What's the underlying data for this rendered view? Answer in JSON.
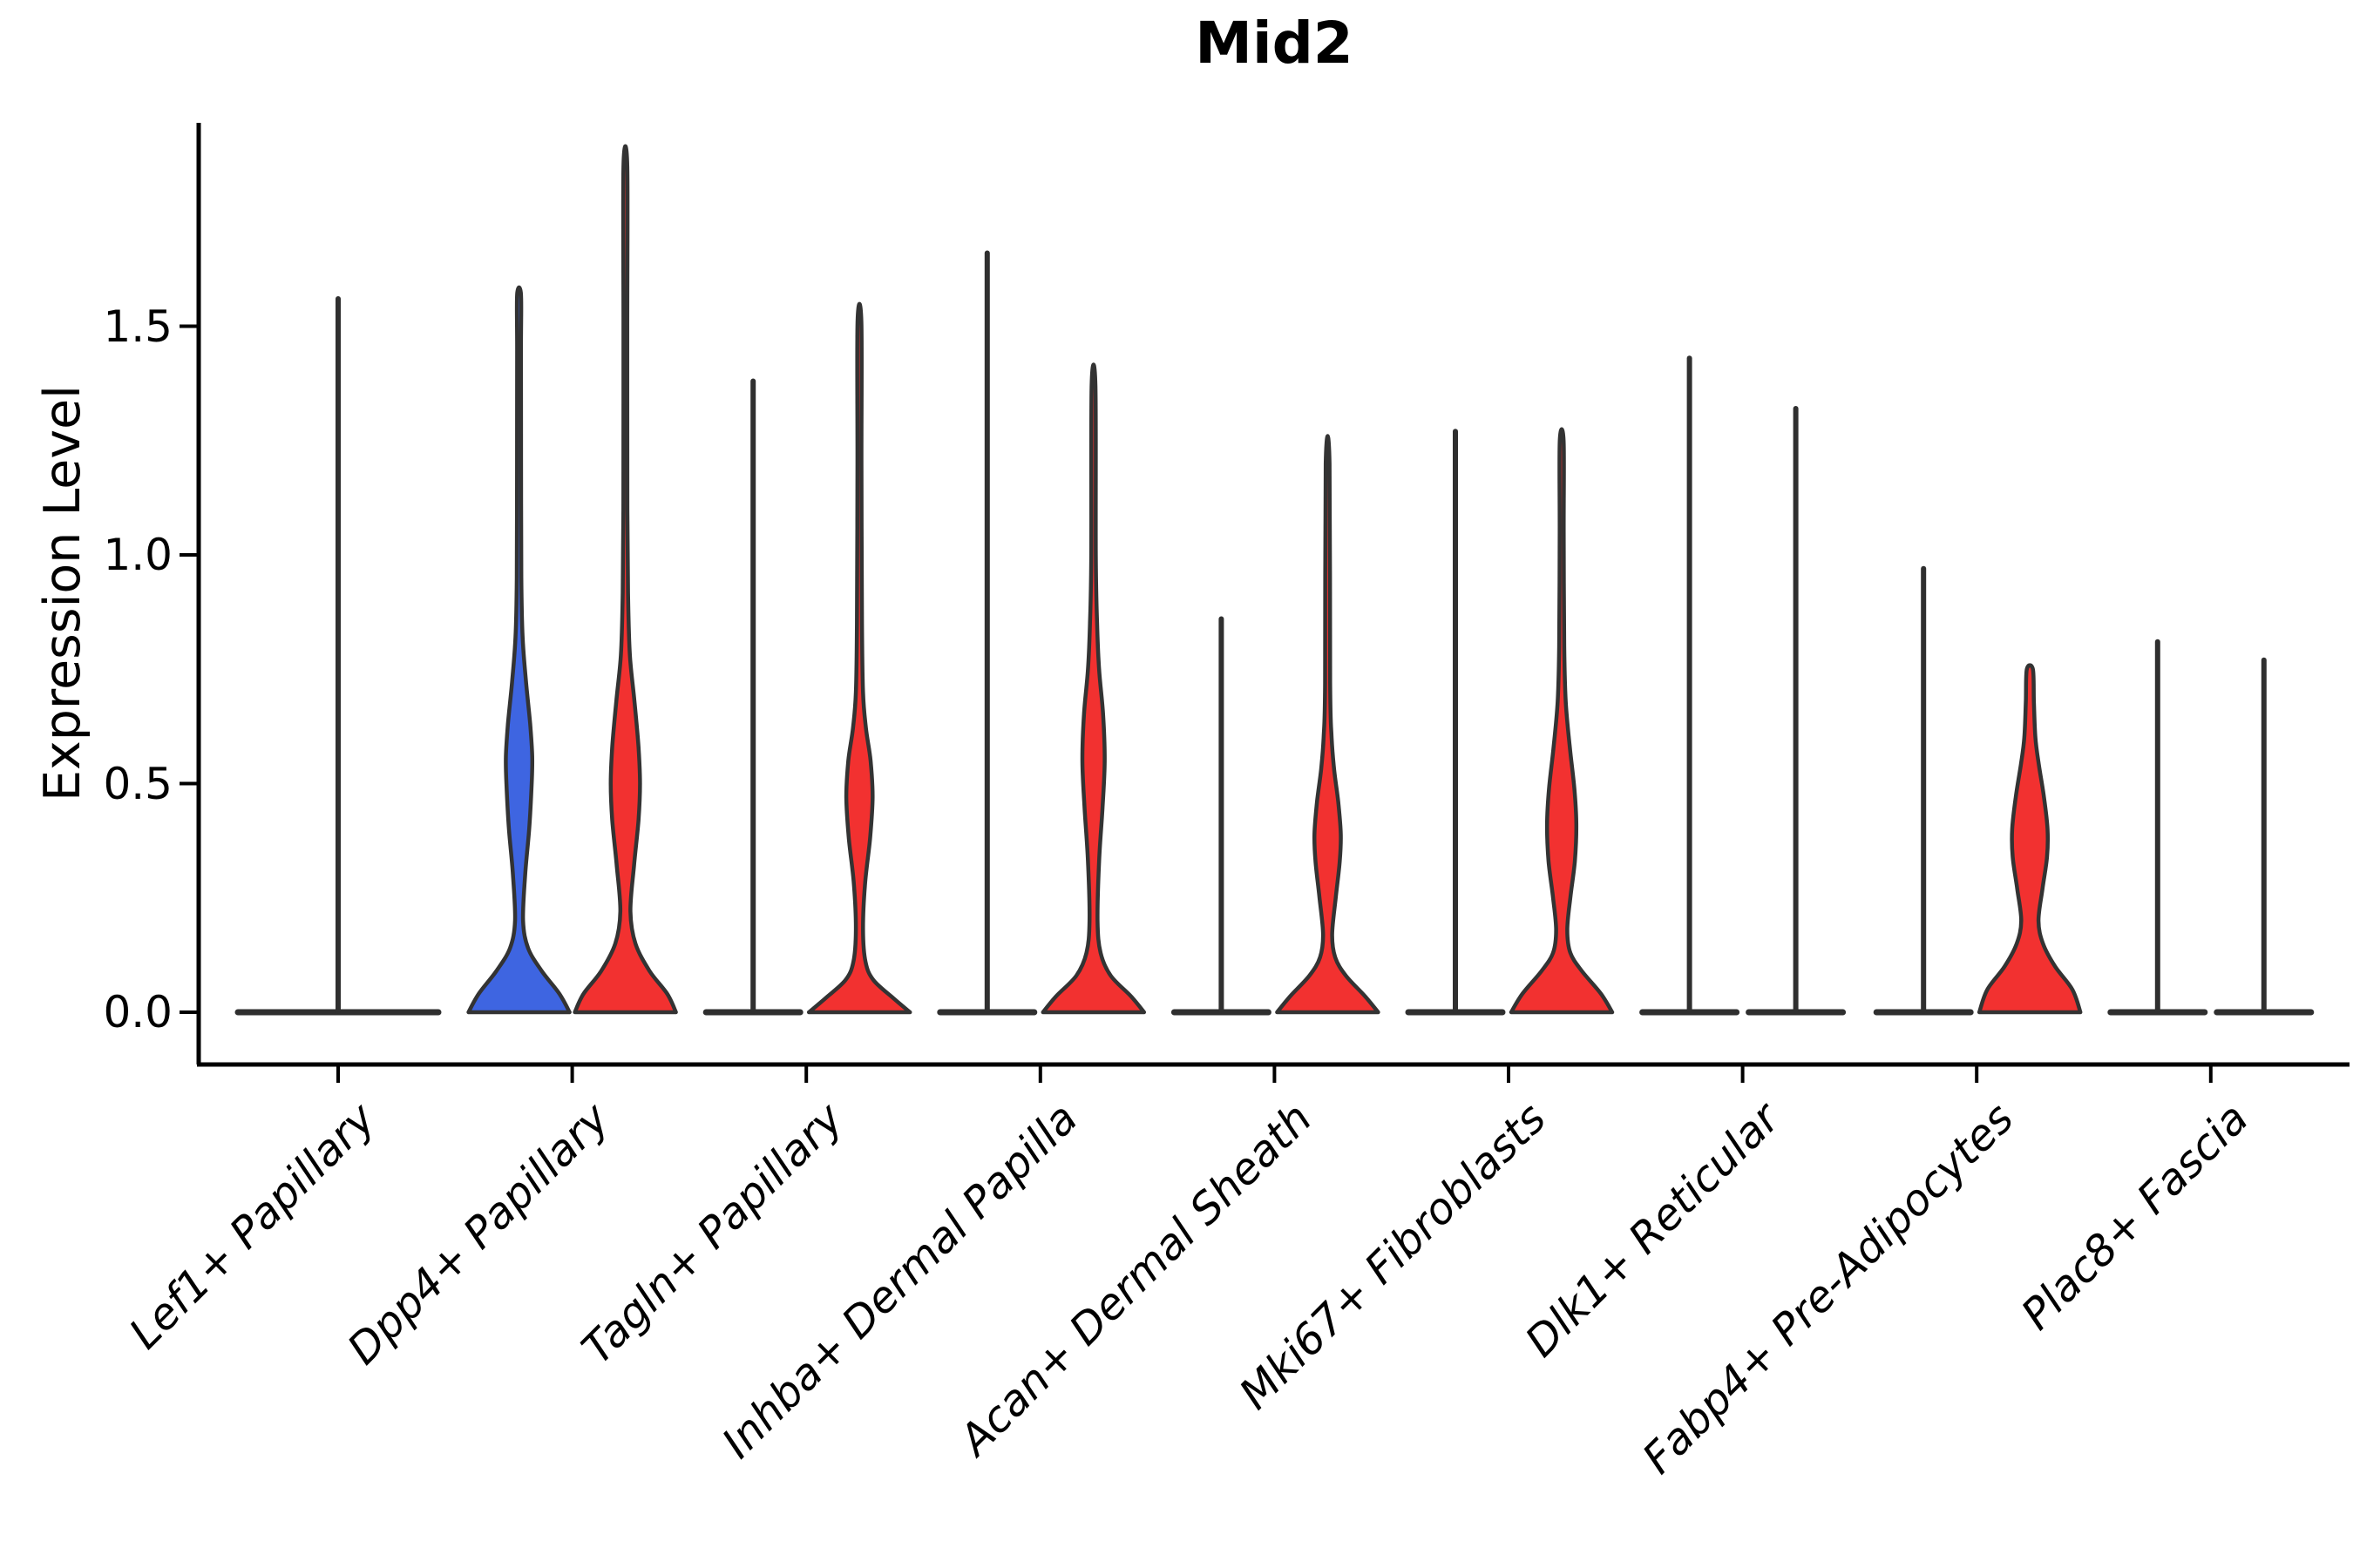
{
  "title": "Mid2",
  "ylabel": "Expression Level",
  "ytick_labels": [
    "0.0",
    "0.5",
    "1.0",
    "1.5"
  ],
  "colors": {
    "group1_fill": "#3E65E1",
    "group2_fill": "#F23130",
    "outline": "#333333",
    "flat_line": "#2F2F2F",
    "axis": "#000000"
  },
  "chart_data": {
    "type": "violin",
    "title": "Mid2",
    "ylabel": "Expression Level",
    "ylim": [
      0,
      1.95
    ],
    "yticks": [
      0,
      0.5,
      1.0,
      1.5
    ],
    "grid": false,
    "legend": "none",
    "groups_per_category": 2,
    "categories": [
      "Lef1+ Papillary",
      "Dpp4+ Papillary",
      "Tagln+ Papillary",
      "Inhba+ Dermal Papilla",
      "Acan+ Dermal Sheath",
      "Mki67+ Fibroblasts",
      "Dlk1+ Reticular",
      "Fabp4+ Pre-Adipocytes",
      "Plac8+ Fascia"
    ],
    "violins": [
      {
        "category_index": 0,
        "group": 1,
        "span": "full",
        "expressed": false,
        "max": 1.56,
        "color": "#2F2F2F"
      },
      {
        "category_index": 1,
        "group": 1,
        "span": "left",
        "expressed": true,
        "max": 1.57,
        "color": "#3E65E1",
        "profile": [
          [
            0,
            1
          ],
          [
            0.04,
            0.8
          ],
          [
            0.09,
            0.45
          ],
          [
            0.14,
            0.18
          ],
          [
            0.2,
            0.08
          ],
          [
            0.3,
            0.12
          ],
          [
            0.4,
            0.2
          ],
          [
            0.5,
            0.25
          ],
          [
            0.56,
            0.26
          ],
          [
            0.63,
            0.22
          ],
          [
            0.72,
            0.14
          ],
          [
            0.82,
            0.07
          ],
          [
            0.95,
            0.045
          ],
          [
            1.2,
            0.04
          ],
          [
            1.45,
            0.035
          ],
          [
            1.57,
            0.03
          ]
        ]
      },
      {
        "category_index": 1,
        "group": 2,
        "span": "right",
        "expressed": true,
        "max": 1.85,
        "color": "#F23130",
        "profile": [
          [
            0,
            1
          ],
          [
            0.04,
            0.83
          ],
          [
            0.09,
            0.48
          ],
          [
            0.15,
            0.2
          ],
          [
            0.22,
            0.1
          ],
          [
            0.32,
            0.17
          ],
          [
            0.42,
            0.26
          ],
          [
            0.5,
            0.29
          ],
          [
            0.58,
            0.26
          ],
          [
            0.68,
            0.18
          ],
          [
            0.78,
            0.09
          ],
          [
            0.9,
            0.055
          ],
          [
            1.1,
            0.04
          ],
          [
            1.5,
            0.035
          ],
          [
            1.85,
            0.03
          ]
        ]
      },
      {
        "category_index": 2,
        "group": 1,
        "span": "left",
        "expressed": false,
        "max": 1.38,
        "color": "#2F2F2F"
      },
      {
        "category_index": 2,
        "group": 2,
        "span": "right",
        "expressed": true,
        "max": 1.51,
        "color": "#F23130",
        "profile": [
          [
            0,
            1
          ],
          [
            0.03,
            0.68
          ],
          [
            0.07,
            0.28
          ],
          [
            0.11,
            0.12
          ],
          [
            0.18,
            0.07
          ],
          [
            0.28,
            0.11
          ],
          [
            0.38,
            0.21
          ],
          [
            0.47,
            0.26
          ],
          [
            0.55,
            0.22
          ],
          [
            0.62,
            0.13
          ],
          [
            0.7,
            0.07
          ],
          [
            0.85,
            0.05
          ],
          [
            1.2,
            0.04
          ],
          [
            1.51,
            0.03
          ]
        ]
      },
      {
        "category_index": 3,
        "group": 1,
        "span": "left",
        "expressed": false,
        "max": 1.66,
        "color": "#2F2F2F"
      },
      {
        "category_index": 3,
        "group": 2,
        "span": "right",
        "expressed": true,
        "max": 1.37,
        "color": "#F23130",
        "profile": [
          [
            0,
            1
          ],
          [
            0.035,
            0.74
          ],
          [
            0.08,
            0.34
          ],
          [
            0.13,
            0.14
          ],
          [
            0.2,
            0.08
          ],
          [
            0.33,
            0.11
          ],
          [
            0.45,
            0.18
          ],
          [
            0.55,
            0.22
          ],
          [
            0.65,
            0.19
          ],
          [
            0.75,
            0.11
          ],
          [
            0.85,
            0.07
          ],
          [
            1.0,
            0.045
          ],
          [
            1.37,
            0.03
          ]
        ]
      },
      {
        "category_index": 4,
        "group": 1,
        "span": "left",
        "expressed": false,
        "max": 0.86,
        "color": "#2F2F2F"
      },
      {
        "category_index": 4,
        "group": 2,
        "span": "right",
        "expressed": true,
        "max": 1.2,
        "color": "#F23130",
        "profile": [
          [
            0,
            1
          ],
          [
            0.035,
            0.74
          ],
          [
            0.08,
            0.36
          ],
          [
            0.12,
            0.15
          ],
          [
            0.17,
            0.09
          ],
          [
            0.25,
            0.16
          ],
          [
            0.33,
            0.24
          ],
          [
            0.39,
            0.26
          ],
          [
            0.46,
            0.21
          ],
          [
            0.53,
            0.13
          ],
          [
            0.6,
            0.08
          ],
          [
            0.72,
            0.05
          ],
          [
            1.2,
            0.03
          ]
        ]
      },
      {
        "category_index": 5,
        "group": 1,
        "span": "left",
        "expressed": false,
        "max": 1.27,
        "color": "#2F2F2F"
      },
      {
        "category_index": 5,
        "group": 2,
        "span": "right",
        "expressed": true,
        "max": 1.25,
        "color": "#F23130",
        "profile": [
          [
            0,
            1
          ],
          [
            0.04,
            0.78
          ],
          [
            0.09,
            0.4
          ],
          [
            0.13,
            0.17
          ],
          [
            0.18,
            0.11
          ],
          [
            0.25,
            0.17
          ],
          [
            0.33,
            0.26
          ],
          [
            0.41,
            0.29
          ],
          [
            0.49,
            0.25
          ],
          [
            0.58,
            0.16
          ],
          [
            0.68,
            0.08
          ],
          [
            0.8,
            0.05
          ],
          [
            1.05,
            0.04
          ],
          [
            1.25,
            0.03
          ]
        ]
      },
      {
        "category_index": 6,
        "group": 1,
        "span": "left",
        "expressed": false,
        "max": 1.43,
        "color": "#2F2F2F"
      },
      {
        "category_index": 6,
        "group": 2,
        "span": "right",
        "expressed": false,
        "max": 1.32,
        "color": "#2F2F2F"
      },
      {
        "category_index": 7,
        "group": 1,
        "span": "left",
        "expressed": false,
        "max": 0.97,
        "color": "#2F2F2F"
      },
      {
        "category_index": 7,
        "group": 2,
        "span": "right",
        "expressed": true,
        "max": 0.75,
        "color": "#F23130",
        "profile": [
          [
            0,
            1
          ],
          [
            0.05,
            0.84
          ],
          [
            0.1,
            0.5
          ],
          [
            0.15,
            0.26
          ],
          [
            0.2,
            0.17
          ],
          [
            0.27,
            0.25
          ],
          [
            0.34,
            0.34
          ],
          [
            0.4,
            0.35
          ],
          [
            0.47,
            0.28
          ],
          [
            0.54,
            0.18
          ],
          [
            0.6,
            0.11
          ],
          [
            0.68,
            0.08
          ],
          [
            0.75,
            0.06
          ]
        ]
      },
      {
        "category_index": 8,
        "group": 1,
        "span": "left",
        "expressed": false,
        "max": 0.81,
        "color": "#2F2F2F"
      },
      {
        "category_index": 8,
        "group": 2,
        "span": "right",
        "expressed": false,
        "max": 0.77,
        "color": "#2F2F2F"
      }
    ]
  }
}
